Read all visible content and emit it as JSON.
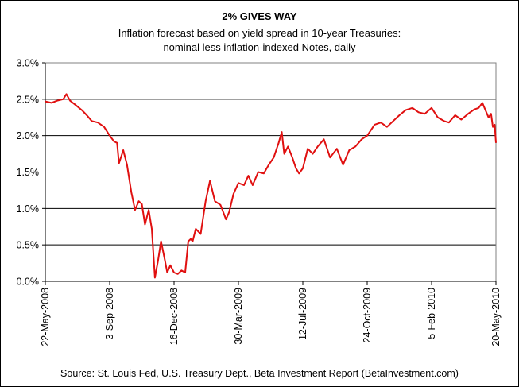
{
  "chart_data": {
    "type": "line",
    "title": "2%  GIVES WAY",
    "subtitle": [
      "Inflation forecast based on yield spread in 10-year Treasuries:",
      "nominal less inflation-indexed Notes, daily"
    ],
    "source": "Source: St. Louis Fed, U.S. Treasury Dept., Beta Investment Report (BetaInvestment.com)",
    "xlabel": "",
    "ylabel": "",
    "ylim": [
      0,
      3.0
    ],
    "y_ticks": [
      0,
      0.5,
      1.0,
      1.5,
      2.0,
      2.5,
      3.0
    ],
    "y_tick_labels": [
      "0.0%",
      "0.5%",
      "1.0%",
      "1.5%",
      "2.0%",
      "2.5%",
      "3.0%"
    ],
    "x_ticks": [
      "22-May-2008",
      "3-Sep-2008",
      "16-Dec-2008",
      "30-Mar-2009",
      "12-Jul-2009",
      "24-Oct-2009",
      "5-Feb-2010",
      "20-May-2010"
    ],
    "grid": "horizontal",
    "legend": "none",
    "colors": {
      "line": "#e01010",
      "grid": "#000000",
      "plot_border": "#808080"
    },
    "series": [
      {
        "x": [
          "2008-05-22",
          "2008-06-01",
          "2008-06-10",
          "2008-06-20",
          "2008-06-25",
          "2008-07-01",
          "2008-07-10",
          "2008-07-20",
          "2008-07-28",
          "2008-08-05",
          "2008-08-15",
          "2008-08-25",
          "2008-09-03",
          "2008-09-10",
          "2008-09-15",
          "2008-09-18",
          "2008-09-25",
          "2008-10-01",
          "2008-10-08",
          "2008-10-14",
          "2008-10-20",
          "2008-10-25",
          "2008-10-30",
          "2008-11-05",
          "2008-11-10",
          "2008-11-15",
          "2008-11-20",
          "2008-11-25",
          "2008-12-01",
          "2008-12-05",
          "2008-12-10",
          "2008-12-16",
          "2008-12-22",
          "2008-12-28",
          "2009-01-03",
          "2009-01-08",
          "2009-01-12",
          "2009-01-15",
          "2009-01-20",
          "2009-01-28",
          "2009-02-05",
          "2009-02-12",
          "2009-02-20",
          "2009-03-01",
          "2009-03-10",
          "2009-03-15",
          "2009-03-22",
          "2009-03-30",
          "2009-04-08",
          "2009-04-15",
          "2009-04-22",
          "2009-05-01",
          "2009-05-10",
          "2009-05-18",
          "2009-05-26",
          "2009-06-03",
          "2009-06-08",
          "2009-06-12",
          "2009-06-18",
          "2009-06-25",
          "2009-07-01",
          "2009-07-06",
          "2009-07-12",
          "2009-07-20",
          "2009-07-28",
          "2009-08-05",
          "2009-08-15",
          "2009-08-25",
          "2009-09-05",
          "2009-09-15",
          "2009-09-25",
          "2009-10-05",
          "2009-10-15",
          "2009-10-24",
          "2009-11-05",
          "2009-11-15",
          "2009-11-25",
          "2009-12-05",
          "2009-12-15",
          "2009-12-25",
          "2010-01-05",
          "2010-01-15",
          "2010-01-25",
          "2010-02-05",
          "2010-02-15",
          "2010-02-25",
          "2010-03-05",
          "2010-03-15",
          "2010-03-25",
          "2010-04-05",
          "2010-04-15",
          "2010-04-22",
          "2010-04-28",
          "2010-05-03",
          "2010-05-08",
          "2010-05-12",
          "2010-05-15",
          "2010-05-18",
          "2010-05-20"
        ],
        "values": [
          2.47,
          2.45,
          2.48,
          2.5,
          2.57,
          2.48,
          2.42,
          2.35,
          2.28,
          2.2,
          2.18,
          2.12,
          2.0,
          1.92,
          1.9,
          1.62,
          1.8,
          1.6,
          1.22,
          0.98,
          1.1,
          1.06,
          0.78,
          0.98,
          0.72,
          0.05,
          0.28,
          0.55,
          0.3,
          0.12,
          0.22,
          0.12,
          0.1,
          0.15,
          0.12,
          0.55,
          0.58,
          0.55,
          0.72,
          0.65,
          1.1,
          1.38,
          1.1,
          1.05,
          0.85,
          0.95,
          1.2,
          1.35,
          1.32,
          1.45,
          1.32,
          1.5,
          1.48,
          1.6,
          1.7,
          1.9,
          2.05,
          1.75,
          1.85,
          1.7,
          1.55,
          1.48,
          1.55,
          1.82,
          1.75,
          1.85,
          1.95,
          1.7,
          1.82,
          1.6,
          1.8,
          1.85,
          1.95,
          2.0,
          2.15,
          2.18,
          2.12,
          2.2,
          2.28,
          2.35,
          2.38,
          2.32,
          2.3,
          2.38,
          2.25,
          2.2,
          2.18,
          2.28,
          2.22,
          2.3,
          2.36,
          2.38,
          2.45,
          2.35,
          2.25,
          2.3,
          2.12,
          2.15,
          1.9
        ]
      }
    ]
  }
}
